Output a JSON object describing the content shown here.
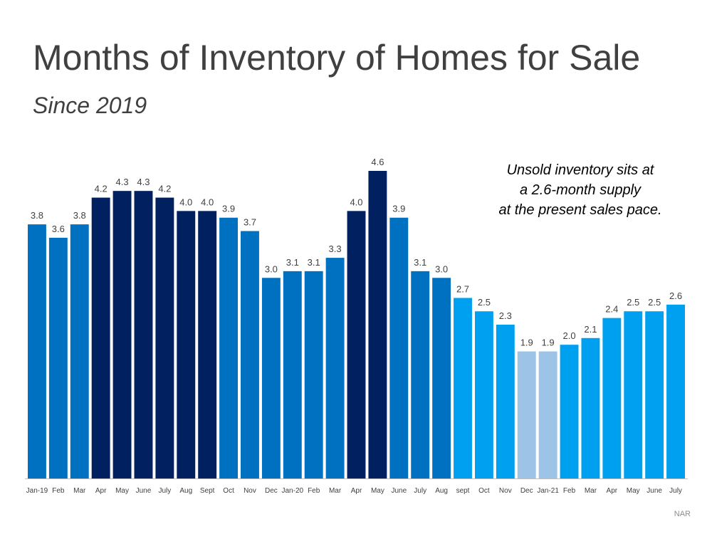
{
  "title": "Months of Inventory of Homes for Sale",
  "subtitle": "Since 2019",
  "note": [
    "Unsold inventory sits at",
    "a 2.6-month supply",
    "at the present sales pace."
  ],
  "source": "NAR",
  "colors": {
    "mid_blue": "#0070c0",
    "dark_navy": "#002060",
    "light_blue": "#00a0f0",
    "pale_blue": "#9dc3e6",
    "axis": "#bfbfbf"
  },
  "chart_data": {
    "type": "bar",
    "categories": [
      "Jan-19",
      "Feb",
      "Mar",
      "Apr",
      "May",
      "June",
      "July",
      "Aug",
      "Sept",
      "Oct",
      "Nov",
      "Dec",
      "Jan-20",
      "Feb",
      "Mar",
      "Apr",
      "May",
      "June",
      "July",
      "Aug",
      "sept",
      "Oct",
      "Nov",
      "Dec",
      "Jan-21",
      "Feb",
      "Mar",
      "Apr",
      "May",
      "June",
      "July"
    ],
    "values": [
      3.8,
      3.6,
      3.8,
      4.2,
      4.3,
      4.3,
      4.2,
      4.0,
      4.0,
      3.9,
      3.7,
      3.0,
      3.1,
      3.1,
      3.3,
      4.0,
      4.6,
      3.9,
      3.1,
      3.0,
      2.7,
      2.5,
      2.3,
      1.9,
      1.9,
      2.0,
      2.1,
      2.4,
      2.5,
      2.5,
      2.6
    ],
    "value_labels": [
      "3.8",
      "3.6",
      "3.8",
      "4.2",
      "4.3",
      "4.3",
      "4.2",
      "4.0",
      "4.0",
      "3.9",
      "3.7",
      "3.0",
      "3.1",
      "3.1",
      "3.3",
      "4.0",
      "4.6",
      "3.9",
      "3.1",
      "3.0",
      "2.7",
      "2.5",
      "2.3",
      "1.9",
      "1.9",
      "2.0",
      "2.1",
      "2.4",
      "2.5",
      "2.5",
      "2.6"
    ],
    "bar_colors": [
      "mid_blue",
      "mid_blue",
      "mid_blue",
      "dark_navy",
      "dark_navy",
      "dark_navy",
      "dark_navy",
      "dark_navy",
      "dark_navy",
      "mid_blue",
      "mid_blue",
      "mid_blue",
      "mid_blue",
      "mid_blue",
      "mid_blue",
      "dark_navy",
      "dark_navy",
      "mid_blue",
      "mid_blue",
      "mid_blue",
      "light_blue",
      "light_blue",
      "light_blue",
      "pale_blue",
      "pale_blue",
      "light_blue",
      "light_blue",
      "light_blue",
      "light_blue",
      "light_blue",
      "light_blue"
    ],
    "title": "Months of Inventory of Homes for Sale",
    "subtitle": "Since 2019",
    "xlabel": "",
    "ylabel": "",
    "ylim": [
      0,
      4.6
    ],
    "grid": false
  }
}
